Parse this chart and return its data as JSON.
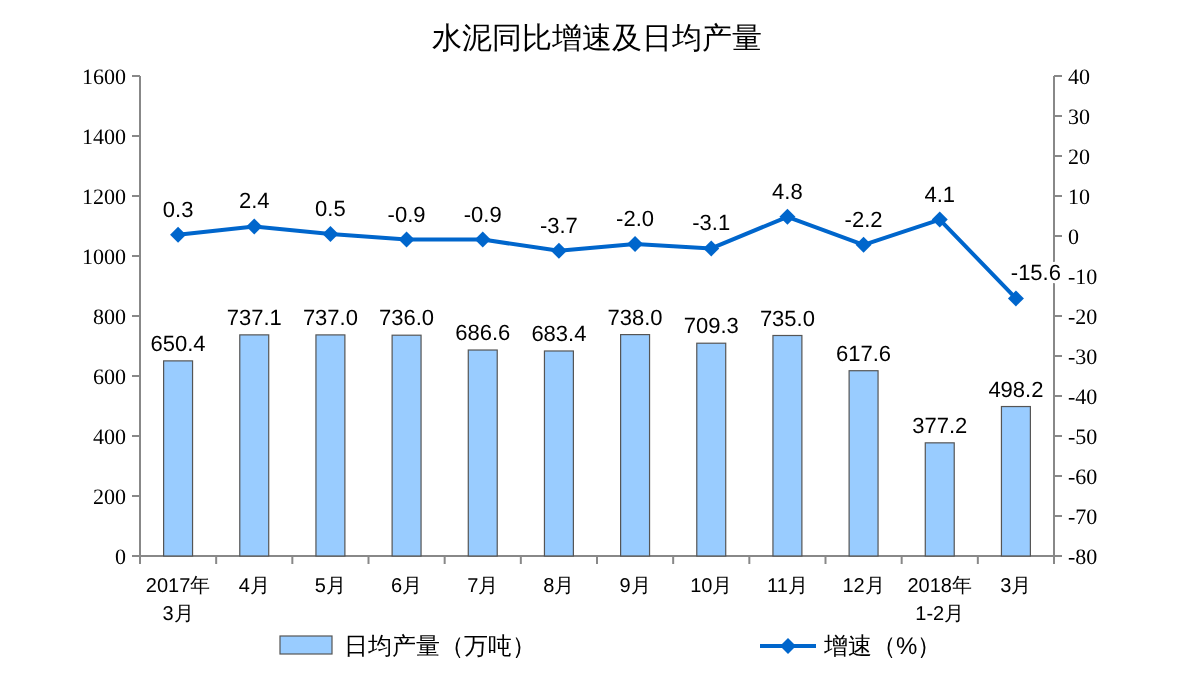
{
  "chart_data": {
    "type": "bar",
    "title": "水泥同比增速及日均产量",
    "categories": [
      "2017年\n3月",
      "4月",
      "5月",
      "6月",
      "7月",
      "8月",
      "9月",
      "10月",
      "11月",
      "12月",
      "2018年\n1-2月",
      "3月"
    ],
    "series": [
      {
        "name": "日均产量（万吨）",
        "color": "#99ccff",
        "values": [
          650.4,
          737.1,
          737.0,
          736.0,
          686.6,
          683.4,
          738.0,
          709.3,
          735.0,
          617.6,
          377.2,
          498.2
        ],
        "value_labels": [
          "650.4",
          "737.1",
          "737.0",
          "736.0",
          "686.6",
          "683.4",
          "738.0",
          "709.3",
          "735.0",
          "617.6",
          "377.2",
          "498.2"
        ]
      },
      {
        "name": "增速（%）",
        "type": "line",
        "axis": "y2",
        "color": "#0066cc",
        "marker": "diamond",
        "values": [
          0.3,
          2.4,
          0.5,
          -0.9,
          -0.9,
          -3.7,
          -2.0,
          -3.1,
          4.8,
          -2.2,
          4.1,
          -15.6
        ],
        "value_labels": [
          "0.3",
          "2.4",
          "0.5",
          "-0.9",
          "-0.9",
          "-3.7",
          "-2.0",
          "-3.1",
          "4.8",
          "-2.2",
          "4.1",
          "-15.6"
        ]
      }
    ],
    "ylim": [
      0,
      1600
    ],
    "yticks": [
      0,
      200,
      400,
      600,
      800,
      1000,
      1200,
      1400,
      1600
    ],
    "y2lim": [
      -80,
      40
    ],
    "y2ticks": [
      -80,
      -70,
      -60,
      -50,
      -40,
      -30,
      -20,
      -10,
      0,
      10,
      20,
      30,
      40
    ],
    "legend": "bottom"
  }
}
